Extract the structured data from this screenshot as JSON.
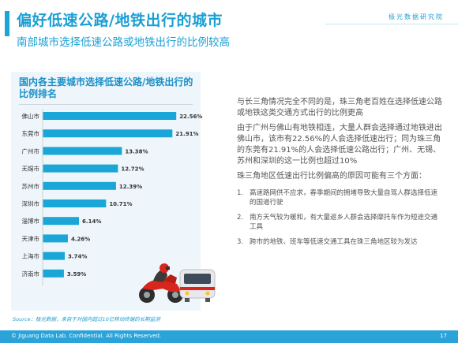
{
  "header": {
    "title": "偏好低速公路/地铁出行的城市",
    "subtitle": "南部城市选择低速公路或地铁出行的比例较高",
    "brand": "极光数据研究院"
  },
  "chart_data": {
    "type": "bar",
    "title": "国内各主要城市选择低速公路/地铁出行的比例排名",
    "categories": [
      "佛山市",
      "东莞市",
      "广州市",
      "无锡市",
      "苏州市",
      "深圳市",
      "淄博市",
      "天津市",
      "上海市",
      "济南市"
    ],
    "values": [
      22.56,
      21.91,
      13.38,
      12.72,
      12.39,
      10.71,
      6.14,
      4.26,
      3.74,
      3.59
    ],
    "value_labels": [
      "22.56%",
      "21.91%",
      "13.38%",
      "12.72%",
      "12.39%",
      "10.71%",
      "6.14%",
      "4.26%",
      "3.74%",
      "3.59%"
    ],
    "bar_color": "#1aa6d6",
    "orientation": "horizontal",
    "xlim": [
      0,
      24
    ],
    "grid": false
  },
  "text": {
    "p1": "与长三角情况完全不同的是，珠三角老百姓在选择低速公路或地铁这类交通方式出行的比例更高",
    "p2": "由于广州与佛山有地铁相连，大量人群会选择通过地铁进出佛山市，该市有22.56%的人会选择低速出行；同为珠三角的东莞有21.91%的人会选择低速公路出行；广州、无锡、苏州和深圳的这一比例也超过10%",
    "p3": "珠三角地区低速出行比例偏高的原因可能有三个方面：",
    "reasons": [
      {
        "num": "1.",
        "text": "高速路网供不应求，春季期间的拥堵导致大量自驾人群选择低速的国道行驶"
      },
      {
        "num": "2.",
        "text": "南方天气较为暖和，有大量返乡人群会选择摩托车作为短途交通工具"
      },
      {
        "num": "3.",
        "text": "跨市的地铁、班车等低速交通工具在珠三角地区较为发达"
      }
    ]
  },
  "illustrations": [
    "motorcycle-rider",
    "subway-train"
  ],
  "source": "Source：极光数据，来自于对国内超过10亿移动终端的长期监测",
  "footer": {
    "copyright": "© Jiguang Data Lab. Confidential. All Rights Reserved.",
    "page": "17"
  },
  "colors": {
    "accent": "#1aa6d6",
    "footer": "#2aa3d9"
  }
}
